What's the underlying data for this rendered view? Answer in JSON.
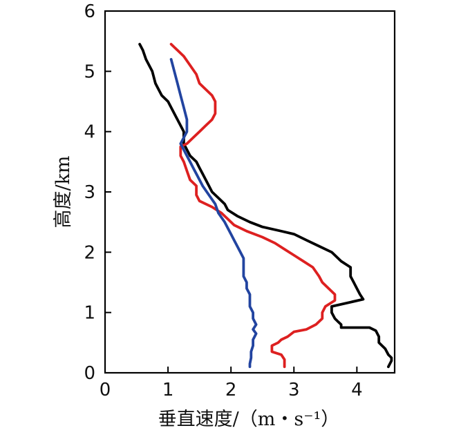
{
  "chart_data": {
    "type": "line",
    "xlabel": "垂直速度/（m・s⁻¹）",
    "ylabel": "高度/km",
    "xlim": [
      0,
      4.6
    ],
    "ylim": [
      0,
      6
    ],
    "xticks": [
      "0",
      "1",
      "2",
      "3",
      "4"
    ],
    "yticks": [
      "0",
      "1",
      "2",
      "3",
      "4",
      "5",
      "6"
    ],
    "grid": false,
    "legend": "none",
    "series": [
      {
        "color": "#000000",
        "points": [
          [
            0.55,
            5.45
          ],
          [
            0.6,
            5.35
          ],
          [
            0.65,
            5.2
          ],
          [
            0.75,
            5.0
          ],
          [
            0.8,
            4.8
          ],
          [
            0.9,
            4.6
          ],
          [
            1.0,
            4.5
          ],
          [
            1.1,
            4.3
          ],
          [
            1.2,
            4.1
          ],
          [
            1.25,
            4.0
          ],
          [
            1.25,
            3.8
          ],
          [
            1.35,
            3.6
          ],
          [
            1.45,
            3.5
          ],
          [
            1.5,
            3.4
          ],
          [
            1.55,
            3.3
          ],
          [
            1.65,
            3.1
          ],
          [
            1.7,
            3.0
          ],
          [
            1.8,
            2.9
          ],
          [
            1.9,
            2.8
          ],
          [
            1.95,
            2.7
          ],
          [
            2.1,
            2.6
          ],
          [
            2.3,
            2.5
          ],
          [
            2.5,
            2.42
          ],
          [
            2.8,
            2.35
          ],
          [
            3.0,
            2.3
          ],
          [
            3.2,
            2.2
          ],
          [
            3.4,
            2.1
          ],
          [
            3.6,
            2.0
          ],
          [
            3.75,
            1.85
          ],
          [
            3.9,
            1.75
          ],
          [
            3.9,
            1.6
          ],
          [
            3.95,
            1.5
          ],
          [
            4.0,
            1.4
          ],
          [
            4.05,
            1.3
          ],
          [
            4.1,
            1.22
          ],
          [
            3.6,
            1.1
          ],
          [
            3.6,
            1.0
          ],
          [
            3.65,
            0.9
          ],
          [
            3.7,
            0.85
          ],
          [
            3.75,
            0.8
          ],
          [
            3.75,
            0.75
          ],
          [
            4.2,
            0.75
          ],
          [
            4.3,
            0.7
          ],
          [
            4.35,
            0.6
          ],
          [
            4.35,
            0.5
          ],
          [
            4.45,
            0.4
          ],
          [
            4.5,
            0.3
          ],
          [
            4.55,
            0.25
          ],
          [
            4.55,
            0.2
          ],
          [
            4.5,
            0.1
          ]
        ]
      },
      {
        "color": "#dd2020",
        "points": [
          [
            1.05,
            5.45
          ],
          [
            1.15,
            5.35
          ],
          [
            1.25,
            5.25
          ],
          [
            1.35,
            5.1
          ],
          [
            1.45,
            4.95
          ],
          [
            1.5,
            4.8
          ],
          [
            1.6,
            4.7
          ],
          [
            1.7,
            4.6
          ],
          [
            1.75,
            4.5
          ],
          [
            1.75,
            4.4
          ],
          [
            1.75,
            4.3
          ],
          [
            1.7,
            4.2
          ],
          [
            1.6,
            4.1
          ],
          [
            1.5,
            4.0
          ],
          [
            1.4,
            3.9
          ],
          [
            1.3,
            3.8
          ],
          [
            1.2,
            3.75
          ],
          [
            1.2,
            3.6
          ],
          [
            1.25,
            3.5
          ],
          [
            1.3,
            3.35
          ],
          [
            1.35,
            3.2
          ],
          [
            1.45,
            3.1
          ],
          [
            1.45,
            2.95
          ],
          [
            1.5,
            2.85
          ],
          [
            1.7,
            2.75
          ],
          [
            1.85,
            2.65
          ],
          [
            1.95,
            2.55
          ],
          [
            2.05,
            2.45
          ],
          [
            2.25,
            2.35
          ],
          [
            2.5,
            2.25
          ],
          [
            2.7,
            2.15
          ],
          [
            2.85,
            2.05
          ],
          [
            3.0,
            1.95
          ],
          [
            3.15,
            1.85
          ],
          [
            3.3,
            1.75
          ],
          [
            3.4,
            1.6
          ],
          [
            3.45,
            1.5
          ],
          [
            3.55,
            1.4
          ],
          [
            3.65,
            1.3
          ],
          [
            3.65,
            1.2
          ],
          [
            3.5,
            1.1
          ],
          [
            3.45,
            1.0
          ],
          [
            3.45,
            0.9
          ],
          [
            3.35,
            0.8
          ],
          [
            3.2,
            0.72
          ],
          [
            3.0,
            0.68
          ],
          [
            2.9,
            0.6
          ],
          [
            2.8,
            0.55
          ],
          [
            2.75,
            0.5
          ],
          [
            2.65,
            0.45
          ],
          [
            2.65,
            0.35
          ],
          [
            2.8,
            0.3
          ],
          [
            2.85,
            0.22
          ],
          [
            2.85,
            0.1
          ]
        ]
      },
      {
        "color": "#2244a0",
        "points": [
          [
            1.05,
            5.2
          ],
          [
            1.1,
            5.0
          ],
          [
            1.15,
            4.8
          ],
          [
            1.2,
            4.6
          ],
          [
            1.25,
            4.4
          ],
          [
            1.3,
            4.2
          ],
          [
            1.3,
            4.0
          ],
          [
            1.25,
            3.9
          ],
          [
            1.2,
            3.8
          ],
          [
            1.25,
            3.7
          ],
          [
            1.3,
            3.6
          ],
          [
            1.35,
            3.5
          ],
          [
            1.4,
            3.4
          ],
          [
            1.45,
            3.3
          ],
          [
            1.55,
            3.1
          ],
          [
            1.65,
            2.95
          ],
          [
            1.75,
            2.8
          ],
          [
            1.8,
            2.65
          ],
          [
            1.9,
            2.5
          ],
          [
            1.95,
            2.4
          ],
          [
            2.0,
            2.3
          ],
          [
            2.05,
            2.2
          ],
          [
            2.1,
            2.1
          ],
          [
            2.15,
            2.0
          ],
          [
            2.2,
            1.9
          ],
          [
            2.2,
            1.8
          ],
          [
            2.2,
            1.7
          ],
          [
            2.2,
            1.6
          ],
          [
            2.25,
            1.5
          ],
          [
            2.25,
            1.4
          ],
          [
            2.3,
            1.3
          ],
          [
            2.3,
            1.2
          ],
          [
            2.3,
            1.1
          ],
          [
            2.35,
            1.0
          ],
          [
            2.35,
            0.9
          ],
          [
            2.4,
            0.8
          ],
          [
            2.35,
            0.72
          ],
          [
            2.4,
            0.65
          ],
          [
            2.35,
            0.55
          ],
          [
            2.35,
            0.45
          ],
          [
            2.32,
            0.35
          ],
          [
            2.32,
            0.25
          ],
          [
            2.3,
            0.15
          ],
          [
            2.3,
            0.1
          ]
        ]
      }
    ]
  }
}
